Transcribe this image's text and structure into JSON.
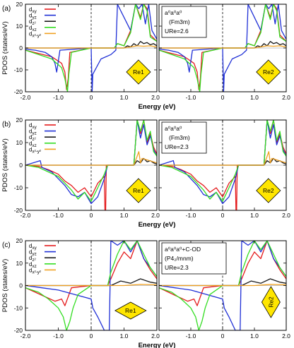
{
  "figure": {
    "ylabel": "PDOS (states/eV)",
    "xlabel": "Energy (eV)",
    "legend_labels": [
      "d_{xy}",
      "d_{yz}",
      "d_{z²}",
      "d_{xz}",
      "d_{x²-y²}"
    ],
    "series_colors": [
      "#e41a1c",
      "#1f2fd6",
      "#1a1a1a",
      "#33dd22",
      "#f0a020"
    ],
    "diamond_color": "#ffe600"
  },
  "chart_data": [
    {
      "type": "line",
      "panel": "(a)",
      "xticks": [
        "-2.0",
        "-1.0",
        "0",
        "1.0",
        "2.0"
      ],
      "yticks": [
        "20",
        "10",
        "0",
        "-10",
        "-20"
      ],
      "xlim": [
        -2.0,
        2.0
      ],
      "ylim": [
        -20,
        20
      ],
      "left_site": "Re1",
      "right_site": "Re2",
      "info_lines": [
        "a⁰a⁰a⁰",
        "(Fm3m)",
        "U_Re=2.6"
      ],
      "series": [
        {
          "name": "d_{xy}",
          "x": [
            -2.0,
            -1.6,
            -1.2,
            -0.9,
            -0.8,
            -0.75,
            -0.7,
            -0.65,
            0,
            0.7,
            0.8,
            1.0,
            1.2,
            1.35,
            1.5,
            1.6,
            1.7,
            1.8,
            2.0
          ],
          "y": [
            -1,
            -2.5,
            -4,
            -7,
            -11,
            -19,
            -14,
            -2,
            0,
            0,
            2,
            1,
            8,
            20,
            14,
            20,
            18,
            6,
            3
          ]
        },
        {
          "name": "d_{yz}",
          "x": [
            -2.0,
            -1.7,
            -1.4,
            -1.2,
            -1.1,
            -1.05,
            -1.0,
            -0.95,
            0,
            0.03,
            0.05,
            0.3,
            0.6,
            0.75,
            0.8,
            1.2,
            1.35,
            1.45,
            1.55,
            1.65,
            1.75,
            1.85,
            2.0
          ],
          "y": [
            -0.5,
            -1,
            -2,
            -4,
            -7,
            -11,
            -6,
            -1,
            0,
            -20,
            -12,
            -5,
            -3,
            -1,
            20,
            8,
            20,
            18,
            20,
            11,
            20,
            8,
            4
          ]
        },
        {
          "name": "d_{z²}",
          "x": [
            -2.0,
            1.0,
            1.1,
            1.2,
            1.3,
            1.4,
            1.5,
            1.6,
            1.7,
            1.8,
            1.9,
            2.0
          ],
          "y": [
            0,
            0,
            1,
            0.5,
            2,
            1,
            3,
            2,
            2.5,
            1.5,
            2,
            1
          ]
        },
        {
          "name": "d_{xz}",
          "x": [
            -2.0,
            -1.6,
            -1.2,
            -0.9,
            -0.8,
            -0.72,
            -0.68,
            -0.6,
            0,
            0.7,
            0.8,
            1.0,
            1.2,
            1.35,
            1.5,
            1.6,
            1.7,
            1.8,
            2.0
          ],
          "y": [
            -1,
            -3,
            -5,
            -9,
            -14,
            -20,
            -12,
            -2,
            0,
            0,
            2,
            1,
            7,
            20,
            13,
            20,
            17,
            5,
            3
          ]
        },
        {
          "name": "d_{x²-y²}",
          "x": [
            -2.0,
            1.0,
            1.2,
            1.4,
            1.6,
            1.8,
            2.0
          ],
          "y": [
            0,
            0,
            0.5,
            1,
            0.8,
            1,
            0.5
          ]
        }
      ]
    },
    {
      "type": "line",
      "panel": "(b)",
      "xticks": [
        "-2.0",
        "-1.0",
        "0",
        "1.0",
        "2.0"
      ],
      "yticks": [
        "20",
        "10",
        "0",
        "-10",
        "-20"
      ],
      "xlim": [
        -2.0,
        2.0
      ],
      "ylim": [
        -20,
        20
      ],
      "left_site": "Re1",
      "right_site": "Re2",
      "info_lines": [
        "a⁰a⁰a⁰",
        "(Fm3m)",
        "U_Re=2.3"
      ],
      "series": [
        {
          "name": "d_{xy}",
          "x": [
            -2.0,
            -1.6,
            -1.3,
            -1.0,
            -0.8,
            -0.6,
            -0.4,
            -0.2,
            0,
            0.2,
            0.4,
            0.42,
            0.44,
            0.46,
            1.3,
            1.4,
            1.5,
            1.6,
            1.7,
            1.8,
            1.9,
            2.0
          ],
          "y": [
            0,
            -0.5,
            -2,
            -4,
            -7,
            -9,
            -12,
            -10,
            -14,
            -8,
            -5,
            -20,
            -20,
            0,
            0,
            20,
            14,
            20,
            10,
            14,
            8,
            5
          ]
        },
        {
          "name": "d_{yz}",
          "x": [
            -2.0,
            -1.55,
            -1.5,
            -1.2,
            -1.0,
            -0.8,
            -0.6,
            -0.4,
            -0.2,
            0,
            0.2,
            0.4,
            0.5,
            1.3,
            1.4,
            1.5,
            1.6,
            1.7,
            1.8,
            1.9,
            2.0
          ],
          "y": [
            0,
            2,
            -1,
            -3,
            -6,
            -9,
            -13,
            -14,
            -12,
            -17,
            -14,
            -6,
            0,
            0,
            20,
            12,
            18,
            9,
            13,
            7,
            4
          ]
        },
        {
          "name": "d_{z²}",
          "x": [
            -2.0,
            1.3,
            1.4,
            1.5,
            1.6,
            1.7,
            1.8,
            1.9,
            2.0
          ],
          "y": [
            0,
            0,
            2,
            1,
            3,
            1.5,
            2,
            1,
            0.5
          ]
        },
        {
          "name": "d_{xz}",
          "x": [
            -2.0,
            -1.6,
            -1.3,
            -1.0,
            -0.8,
            -0.6,
            -0.4,
            -0.2,
            0,
            0.2,
            0.4,
            0.5,
            1.3,
            1.4,
            1.5,
            1.6,
            1.7,
            1.8,
            1.9,
            2.0
          ],
          "y": [
            0,
            -1,
            -3,
            -5,
            -8,
            -11,
            -15,
            -12,
            -16,
            -10,
            -4,
            0,
            0,
            20,
            15,
            20,
            11,
            15,
            6,
            4
          ]
        },
        {
          "name": "d_{x²-y²}",
          "x": [
            -2.0,
            1.3,
            1.45,
            1.5,
            1.55,
            2.0
          ],
          "y": [
            0,
            0,
            6,
            1,
            3,
            1
          ]
        }
      ]
    },
    {
      "type": "line",
      "panel": "(c)",
      "xticks": [
        "-2.0",
        "-1.0",
        "0",
        "1.0",
        "2.0"
      ],
      "yticks": [
        "20",
        "10",
        "0",
        "-10",
        "-20"
      ],
      "xlim": [
        -2.0,
        2.0
      ],
      "ylim": [
        -20,
        20
      ],
      "left_site": "Re1",
      "right_site": "Re2",
      "info_lines": [
        "a⁰a⁰a⁰+C-OD",
        "(P4₂/mnm)",
        "U_Re=2.3"
      ],
      "series": [
        {
          "name": "d_{xy}",
          "x": [
            -2.0,
            -1.7,
            -1.4,
            -1.1,
            -0.9,
            -0.8,
            -0.7,
            -0.6,
            0,
            0.5,
            0.6,
            0.8,
            1.0,
            1.2,
            1.4,
            1.6,
            1.8,
            2.0
          ],
          "y": [
            -1,
            -3,
            -5,
            -7,
            -6,
            -9,
            -5,
            -1,
            0,
            0,
            3,
            10,
            15,
            12,
            20,
            12,
            7,
            3
          ]
        },
        {
          "name": "d_{yz}",
          "x": [
            -2.0,
            -1.5,
            -1.0,
            -0.5,
            0,
            0.05,
            0.2,
            0.4,
            0.55,
            0.6,
            0.8,
            1.0,
            1.2,
            1.4,
            1.6,
            1.8,
            2.0
          ],
          "y": [
            0,
            -1,
            -2,
            -4,
            -6,
            -10,
            -14,
            -20,
            -20,
            20,
            18,
            20,
            15,
            20,
            12,
            8,
            4
          ]
        },
        {
          "name": "d_{z²}",
          "x": [
            -2.0,
            0.6,
            0.9,
            1.2,
            1.5,
            1.8,
            2.0
          ],
          "y": [
            0,
            0,
            2,
            1,
            3,
            1.5,
            1
          ]
        },
        {
          "name": "d_{xz}",
          "x": [
            -2.0,
            -1.6,
            -1.3,
            -1.0,
            -0.85,
            -0.75,
            -0.65,
            -0.55,
            -0.4,
            0,
            0.5,
            0.6,
            0.8,
            1.0,
            1.2,
            1.4,
            1.6,
            1.8,
            2.0
          ],
          "y": [
            -1,
            -3,
            -6,
            -10,
            -14,
            -20,
            -16,
            -10,
            -4,
            0,
            0,
            6,
            14,
            20,
            16,
            20,
            14,
            8,
            4
          ]
        },
        {
          "name": "d_{x²-y²}",
          "x": [
            -2.0,
            1.0,
            1.5,
            2.0
          ],
          "y": [
            0,
            0,
            0.5,
            0.3
          ]
        }
      ]
    }
  ]
}
